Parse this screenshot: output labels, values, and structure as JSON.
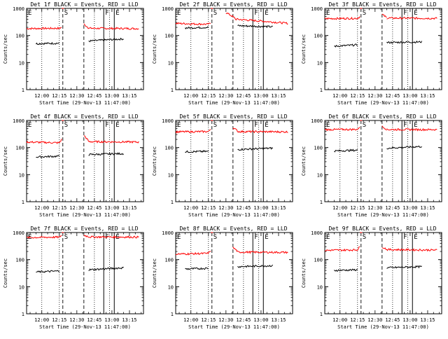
{
  "figure": {
    "background": "#ffffff",
    "axis_color": "#000000",
    "events_color": "#000000",
    "lld_color": "#ff0000"
  },
  "chart_data": [
    {
      "type": "line",
      "title": "Det 1f BLACK = Events, RED = LLD",
      "xlabel": "Start Time (29-Nov-13 11:47:00)",
      "ylabel": "Counts/sec",
      "yscale": "log",
      "ylim": [
        1,
        1000
      ],
      "y_ticks": [
        "1",
        "10",
        "100",
        "1000"
      ],
      "x_ticks": [
        "12:00",
        "12:15",
        "12:30",
        "12:45",
        "13:00",
        "13:15"
      ],
      "xlim": [
        "11:47",
        "13:27"
      ],
      "markers": [
        {
          "label": "E",
          "time": "11:47"
        },
        {
          "label": "S",
          "time": "12:18"
        },
        {
          "label": "F",
          "time": "12:53"
        },
        {
          "label": "E",
          "time": "13:02"
        }
      ],
      "dotted_lines": [
        "12:00",
        "12:15",
        "12:45",
        "12:58"
      ],
      "dashed_lines": [
        "12:18",
        "12:36"
      ],
      "solid_lines": [
        "12:53",
        "13:02"
      ],
      "series": [
        {
          "color": "#ff0000",
          "segments": [
            {
              "t0": "11:47",
              "t1": "12:15",
              "v0": 180,
              "v1": 185
            },
            {
              "t0": "12:15",
              "t1": "12:17",
              "v0": 185,
              "v1": 200
            },
            {
              "t0": "12:17",
              "t1": "12:19",
              "v0": 1100,
              "v1": 1100
            },
            {
              "t0": "12:36",
              "t1": "12:40",
              "v0": 260,
              "v1": 190
            },
            {
              "t0": "12:40",
              "t1": "13:23",
              "v0": 185,
              "v1": 180
            }
          ]
        },
        {
          "color": "#000000",
          "segments": [
            {
              "t0": "11:55",
              "t1": "12:15",
              "v0": 50,
              "v1": 52
            },
            {
              "t0": "12:40",
              "t1": "13:10",
              "v0": 62,
              "v1": 75
            }
          ]
        }
      ]
    },
    {
      "type": "line",
      "title": "Det 2f BLACK = Events, RED = LLD",
      "xlabel": "Start Time (29-Nov-13 11:47:00)",
      "ylabel": "Counts/sec",
      "yscale": "log",
      "ylim": [
        1,
        1000
      ],
      "y_ticks": [
        "1",
        "10",
        "100",
        "1000"
      ],
      "x_ticks": [
        "12:00",
        "12:15",
        "12:30",
        "12:45",
        "13:00",
        "13:15"
      ],
      "xlim": [
        "11:47",
        "13:27"
      ],
      "markers": [
        {
          "label": "E",
          "time": "11:47"
        },
        {
          "label": "S",
          "time": "12:18"
        },
        {
          "label": "F",
          "time": "12:53"
        },
        {
          "label": "E",
          "time": "13:02"
        }
      ],
      "dotted_lines": [
        "12:00",
        "12:15",
        "12:45",
        "12:58"
      ],
      "dashed_lines": [
        "12:18",
        "12:36"
      ],
      "solid_lines": [
        "12:53",
        "13:02"
      ],
      "series": [
        {
          "color": "#ff0000",
          "segments": [
            {
              "t0": "11:47",
              "t1": "12:15",
              "v0": 280,
              "v1": 260
            },
            {
              "t0": "12:15",
              "t1": "12:17",
              "v0": 260,
              "v1": 300
            },
            {
              "t0": "12:17",
              "t1": "12:19",
              "v0": 1100,
              "v1": 1100
            },
            {
              "t0": "12:30",
              "t1": "12:38",
              "v0": 700,
              "v1": 420
            },
            {
              "t0": "12:38",
              "t1": "13:23",
              "v0": 400,
              "v1": 280
            }
          ]
        },
        {
          "color": "#000000",
          "segments": [
            {
              "t0": "11:55",
              "t1": "12:15",
              "v0": 190,
              "v1": 200
            },
            {
              "t0": "12:40",
              "t1": "13:10",
              "v0": 230,
              "v1": 210
            }
          ]
        }
      ]
    },
    {
      "type": "line",
      "title": "Det 3f BLACK = Events, RED = LLD",
      "xlabel": "Start Time (29-Nov-13 11:47:00)",
      "ylabel": "Counts/sec",
      "yscale": "log",
      "ylim": [
        1,
        1000
      ],
      "y_ticks": [
        "1",
        "10",
        "100",
        "1000"
      ],
      "x_ticks": [
        "12:00",
        "12:15",
        "12:30",
        "12:45",
        "13:00",
        "13:15"
      ],
      "xlim": [
        "11:47",
        "13:27"
      ],
      "markers": [
        {
          "label": "E",
          "time": "11:47"
        },
        {
          "label": "S",
          "time": "12:18"
        },
        {
          "label": "F",
          "time": "12:53"
        },
        {
          "label": "E",
          "time": "13:02"
        }
      ],
      "dotted_lines": [
        "12:00",
        "12:15",
        "12:45",
        "12:58"
      ],
      "dashed_lines": [
        "12:18",
        "12:36"
      ],
      "solid_lines": [
        "12:53",
        "13:02"
      ],
      "series": [
        {
          "color": "#ff0000",
          "segments": [
            {
              "t0": "11:47",
              "t1": "12:15",
              "v0": 420,
              "v1": 430
            },
            {
              "t0": "12:15",
              "t1": "12:17",
              "v0": 430,
              "v1": 500
            },
            {
              "t0": "12:17",
              "t1": "12:19",
              "v0": 1100,
              "v1": 1100
            },
            {
              "t0": "12:36",
              "t1": "12:40",
              "v0": 600,
              "v1": 450
            },
            {
              "t0": "12:40",
              "t1": "13:23",
              "v0": 440,
              "v1": 430
            }
          ]
        },
        {
          "color": "#000000",
          "segments": [
            {
              "t0": "11:55",
              "t1": "12:15",
              "v0": 40,
              "v1": 45
            },
            {
              "t0": "12:40",
              "t1": "13:10",
              "v0": 55,
              "v1": 58
            }
          ]
        }
      ]
    },
    {
      "type": "line",
      "title": "Det 4f BLACK = Events, RED = LLD",
      "xlabel": "Start Time (29-Nov-13 11:47:00)",
      "ylabel": "Counts/sec",
      "yscale": "log",
      "ylim": [
        1,
        1000
      ],
      "y_ticks": [
        "1",
        "10",
        "100",
        "1000"
      ],
      "x_ticks": [
        "12:00",
        "12:15",
        "12:30",
        "12:45",
        "13:00",
        "13:15"
      ],
      "xlim": [
        "11:47",
        "13:27"
      ],
      "markers": [
        {
          "label": "E",
          "time": "11:47"
        },
        {
          "label": "S",
          "time": "12:18"
        },
        {
          "label": "F",
          "time": "12:53"
        },
        {
          "label": "E",
          "time": "13:02"
        }
      ],
      "dotted_lines": [
        "12:00",
        "12:15",
        "12:45",
        "12:58"
      ],
      "dashed_lines": [
        "12:18",
        "12:36"
      ],
      "solid_lines": [
        "12:53",
        "13:02"
      ],
      "series": [
        {
          "color": "#ff0000",
          "segments": [
            {
              "t0": "11:47",
              "t1": "12:15",
              "v0": 160,
              "v1": 150
            },
            {
              "t0": "12:15",
              "t1": "12:17",
              "v0": 150,
              "v1": 200
            },
            {
              "t0": "12:17",
              "t1": "12:19",
              "v0": 1100,
              "v1": 1100
            },
            {
              "t0": "12:36",
              "t1": "12:40",
              "v0": 280,
              "v1": 170
            },
            {
              "t0": "12:40",
              "t1": "13:23",
              "v0": 165,
              "v1": 160
            }
          ]
        },
        {
          "color": "#000000",
          "segments": [
            {
              "t0": "11:55",
              "t1": "12:15",
              "v0": 45,
              "v1": 48
            },
            {
              "t0": "12:40",
              "t1": "13:10",
              "v0": 55,
              "v1": 60
            }
          ]
        }
      ]
    },
    {
      "type": "line",
      "title": "Det 5f BLACK = Events, RED = LLD",
      "xlabel": "Start Time (29-Nov-13 11:47:00)",
      "ylabel": "Counts/sec",
      "yscale": "log",
      "ylim": [
        1,
        1000
      ],
      "y_ticks": [
        "1",
        "10",
        "100",
        "1000"
      ],
      "x_ticks": [
        "12:00",
        "12:15",
        "12:30",
        "12:45",
        "13:00",
        "13:15"
      ],
      "xlim": [
        "11:47",
        "13:27"
      ],
      "markers": [
        {
          "label": "E",
          "time": "11:47"
        },
        {
          "label": "S",
          "time": "12:18"
        },
        {
          "label": "F",
          "time": "12:53"
        },
        {
          "label": "E",
          "time": "13:02"
        }
      ],
      "dotted_lines": [
        "12:00",
        "12:15",
        "12:45",
        "12:58"
      ],
      "dashed_lines": [
        "12:18",
        "12:36"
      ],
      "solid_lines": [
        "12:53",
        "13:02"
      ],
      "series": [
        {
          "color": "#ff0000",
          "segments": [
            {
              "t0": "11:47",
              "t1": "12:15",
              "v0": 380,
              "v1": 390
            },
            {
              "t0": "12:15",
              "t1": "12:17",
              "v0": 390,
              "v1": 500
            },
            {
              "t0": "12:17",
              "t1": "12:19",
              "v0": 1100,
              "v1": 1100
            },
            {
              "t0": "12:36",
              "t1": "12:40",
              "v0": 550,
              "v1": 400
            },
            {
              "t0": "12:40",
              "t1": "13:23",
              "v0": 390,
              "v1": 380
            }
          ]
        },
        {
          "color": "#000000",
          "segments": [
            {
              "t0": "11:55",
              "t1": "12:15",
              "v0": 70,
              "v1": 72
            },
            {
              "t0": "12:40",
              "t1": "13:10",
              "v0": 85,
              "v1": 95
            }
          ]
        }
      ]
    },
    {
      "type": "line",
      "title": "Det 6f BLACK = Events, RED = LLD",
      "xlabel": "Start Time (29-Nov-13 11:47:00)",
      "ylabel": "Counts/sec",
      "yscale": "log",
      "ylim": [
        1,
        1000
      ],
      "y_ticks": [
        "1",
        "10",
        "100",
        "1000"
      ],
      "x_ticks": [
        "12:00",
        "12:15",
        "12:30",
        "12:45",
        "13:00",
        "13:15"
      ],
      "xlim": [
        "11:47",
        "13:27"
      ],
      "markers": [
        {
          "label": "E",
          "time": "11:47"
        },
        {
          "label": "S",
          "time": "12:18"
        },
        {
          "label": "F",
          "time": "12:53"
        },
        {
          "label": "E",
          "time": "13:02"
        }
      ],
      "dotted_lines": [
        "12:00",
        "12:15",
        "12:45",
        "12:58"
      ],
      "dashed_lines": [
        "12:18",
        "12:36"
      ],
      "solid_lines": [
        "12:53",
        "13:02"
      ],
      "series": [
        {
          "color": "#ff0000",
          "segments": [
            {
              "t0": "11:47",
              "t1": "12:15",
              "v0": 460,
              "v1": 470
            },
            {
              "t0": "12:15",
              "t1": "12:17",
              "v0": 470,
              "v1": 600
            },
            {
              "t0": "12:17",
              "t1": "12:19",
              "v0": 1100,
              "v1": 1100
            },
            {
              "t0": "12:36",
              "t1": "12:40",
              "v0": 600,
              "v1": 470
            },
            {
              "t0": "12:40",
              "t1": "13:23",
              "v0": 465,
              "v1": 460
            }
          ]
        },
        {
          "color": "#000000",
          "segments": [
            {
              "t0": "11:55",
              "t1": "12:15",
              "v0": 75,
              "v1": 80
            },
            {
              "t0": "12:40",
              "t1": "13:10",
              "v0": 95,
              "v1": 110
            }
          ]
        }
      ]
    },
    {
      "type": "line",
      "title": "Det 7f BLACK = Events, RED = LLD",
      "xlabel": "Start Time (29-Nov-13 11:47:00)",
      "ylabel": "Counts/sec",
      "yscale": "log",
      "ylim": [
        1,
        1000
      ],
      "y_ticks": [
        "1",
        "10",
        "100",
        "1000"
      ],
      "x_ticks": [
        "12:00",
        "12:15",
        "12:30",
        "12:45",
        "13:00",
        "13:15"
      ],
      "xlim": [
        "11:47",
        "13:27"
      ],
      "markers": [
        {
          "label": "E",
          "time": "11:47"
        },
        {
          "label": "S",
          "time": "12:18"
        },
        {
          "label": "F",
          "time": "12:53"
        },
        {
          "label": "E",
          "time": "13:02"
        }
      ],
      "dotted_lines": [
        "12:00",
        "12:15",
        "12:45",
        "12:58"
      ],
      "dashed_lines": [
        "12:18",
        "12:36"
      ],
      "solid_lines": [
        "12:53",
        "13:02"
      ],
      "series": [
        {
          "color": "#ff0000",
          "segments": [
            {
              "t0": "11:47",
              "t1": "12:15",
              "v0": 650,
              "v1": 680
            },
            {
              "t0": "12:15",
              "t1": "12:17",
              "v0": 680,
              "v1": 800
            },
            {
              "t0": "12:17",
              "t1": "12:19",
              "v0": 1100,
              "v1": 1100
            },
            {
              "t0": "12:36",
              "t1": "12:40",
              "v0": 800,
              "v1": 700
            },
            {
              "t0": "12:40",
              "t1": "13:23",
              "v0": 690,
              "v1": 680
            }
          ]
        },
        {
          "color": "#000000",
          "segments": [
            {
              "t0": "11:55",
              "t1": "12:15",
              "v0": 35,
              "v1": 38
            },
            {
              "t0": "12:40",
              "t1": "13:10",
              "v0": 42,
              "v1": 50
            }
          ]
        }
      ]
    },
    {
      "type": "line",
      "title": "Det 8f BLACK = Events, RED = LLD",
      "xlabel": "Start Time (29-Nov-13 11:47:00)",
      "ylabel": "Counts/sec",
      "yscale": "log",
      "ylim": [
        1,
        1000
      ],
      "y_ticks": [
        "1",
        "10",
        "100",
        "1000"
      ],
      "x_ticks": [
        "12:00",
        "12:15",
        "12:30",
        "12:45",
        "13:00",
        "13:15"
      ],
      "xlim": [
        "11:47",
        "13:27"
      ],
      "markers": [
        {
          "label": "E",
          "time": "11:47"
        },
        {
          "label": "S",
          "time": "12:18"
        },
        {
          "label": "F",
          "time": "12:53"
        },
        {
          "label": "E",
          "time": "13:02"
        }
      ],
      "dotted_lines": [
        "12:00",
        "12:15",
        "12:45",
        "12:58"
      ],
      "dashed_lines": [
        "12:18",
        "12:36"
      ],
      "solid_lines": [
        "12:53",
        "13:02"
      ],
      "series": [
        {
          "color": "#ff0000",
          "segments": [
            {
              "t0": "11:47",
              "t1": "12:15",
              "v0": 160,
              "v1": 170
            },
            {
              "t0": "12:15",
              "t1": "12:17",
              "v0": 170,
              "v1": 220
            },
            {
              "t0": "12:17",
              "t1": "12:19",
              "v0": 1100,
              "v1": 1100
            },
            {
              "t0": "12:36",
              "t1": "12:40",
              "v0": 280,
              "v1": 200
            },
            {
              "t0": "12:40",
              "t1": "13:23",
              "v0": 190,
              "v1": 185
            }
          ]
        },
        {
          "color": "#000000",
          "segments": [
            {
              "t0": "11:55",
              "t1": "12:15",
              "v0": 45,
              "v1": 48
            },
            {
              "t0": "12:40",
              "t1": "13:10",
              "v0": 55,
              "v1": 60
            }
          ]
        }
      ]
    },
    {
      "type": "line",
      "title": "Det 9f BLACK = Events, RED = LLD",
      "xlabel": "Start Time (29-Nov-13 11:47:00)",
      "ylabel": "Counts/sec",
      "yscale": "log",
      "ylim": [
        1,
        1000
      ],
      "y_ticks": [
        "1",
        "10",
        "100",
        "1000"
      ],
      "x_ticks": [
        "12:00",
        "12:15",
        "12:30",
        "12:45",
        "13:00",
        "13:15"
      ],
      "xlim": [
        "11:47",
        "13:27"
      ],
      "markers": [
        {
          "label": "E",
          "time": "11:47"
        },
        {
          "label": "S",
          "time": "12:18"
        },
        {
          "label": "F",
          "time": "12:53"
        },
        {
          "label": "E",
          "time": "13:02"
        }
      ],
      "dotted_lines": [
        "12:00",
        "12:15",
        "12:45",
        "12:58"
      ],
      "dashed_lines": [
        "12:18",
        "12:36"
      ],
      "solid_lines": [
        "12:53",
        "13:02"
      ],
      "series": [
        {
          "color": "#ff0000",
          "segments": [
            {
              "t0": "11:47",
              "t1": "12:15",
              "v0": 220,
              "v1": 230
            },
            {
              "t0": "12:15",
              "t1": "12:17",
              "v0": 230,
              "v1": 300
            },
            {
              "t0": "12:17",
              "t1": "12:19",
              "v0": 1100,
              "v1": 1100
            },
            {
              "t0": "12:36",
              "t1": "12:40",
              "v0": 300,
              "v1": 240
            },
            {
              "t0": "12:40",
              "t1": "13:23",
              "v0": 235,
              "v1": 225
            }
          ]
        },
        {
          "color": "#000000",
          "segments": [
            {
              "t0": "11:55",
              "t1": "12:15",
              "v0": 40,
              "v1": 42
            },
            {
              "t0": "12:40",
              "t1": "13:10",
              "v0": 50,
              "v1": 55
            }
          ]
        }
      ]
    }
  ]
}
